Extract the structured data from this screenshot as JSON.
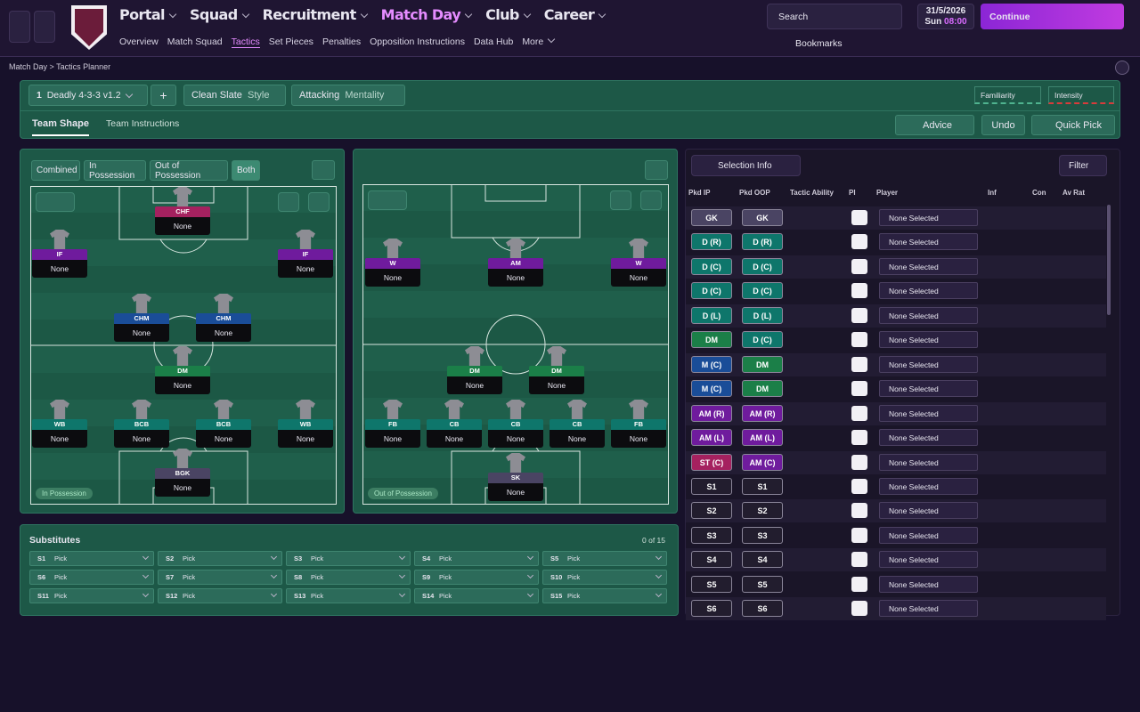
{
  "nav": {
    "main": [
      "Portal",
      "Squad",
      "Recruitment",
      "Match Day",
      "Club",
      "Career"
    ],
    "sub": [
      "Overview",
      "Match Squad",
      "Tactics",
      "Set Pieces",
      "Penalties",
      "Opposition Instructions",
      "Data Hub",
      "More"
    ],
    "search": "Search",
    "date": "31/5/2026",
    "day": "Sun",
    "time": "08:00",
    "continue": "Continue",
    "bookmarks": "Bookmarks"
  },
  "breadcrumb": [
    "Match Day",
    "Tactics Planner"
  ],
  "tactic_bar": {
    "slot": "1",
    "name": "Deadly 4-3-3 v1.2",
    "add": "+",
    "style_value": "Clean Slate",
    "style_label": "Style",
    "mentality_value": "Attacking",
    "mentality_label": "Mentality",
    "familiarity": "Familiarity",
    "intensity": "Intensity"
  },
  "tabs": {
    "items": [
      "Team Shape",
      "Team Instructions"
    ],
    "advice": "Advice",
    "undo": "Undo",
    "quick_pick": "Quick Pick"
  },
  "view_modes": [
    "Combined",
    "In Possession",
    "Out of Possession",
    "Both"
  ],
  "pitches": [
    {
      "label": "In Possession",
      "players": [
        {
          "position": "CHF",
          "player": "None"
        },
        {
          "position": "IF",
          "player": "None"
        },
        {
          "position": "IF",
          "player": "None"
        },
        {
          "position": "CHM",
          "player": "None"
        },
        {
          "position": "CHM",
          "player": "None"
        },
        {
          "position": "DM",
          "player": "None"
        },
        {
          "position": "WB",
          "player": "None"
        },
        {
          "position": "BCB",
          "player": "None"
        },
        {
          "position": "BCB",
          "player": "None"
        },
        {
          "position": "WB",
          "player": "None"
        },
        {
          "position": "BGK",
          "player": "None"
        }
      ]
    },
    {
      "label": "Out of Possession",
      "players": [
        {
          "position": "W",
          "player": "None"
        },
        {
          "position": "AM",
          "player": "None"
        },
        {
          "position": "W",
          "player": "None"
        },
        {
          "position": "DM",
          "player": "None"
        },
        {
          "position": "DM",
          "player": "None"
        },
        {
          "position": "FB",
          "player": "None"
        },
        {
          "position": "CB",
          "player": "None"
        },
        {
          "position": "CB",
          "player": "None"
        },
        {
          "position": "CB",
          "player": "None"
        },
        {
          "position": "FB",
          "player": "None"
        },
        {
          "position": "SK",
          "player": "None"
        }
      ]
    }
  ],
  "substitutes": {
    "title": "Substitutes",
    "count": "0 of 15",
    "slots": [
      {
        "slot": "S1",
        "player": "Pick"
      },
      {
        "slot": "S2",
        "player": "Pick"
      },
      {
        "slot": "S3",
        "player": "Pick"
      },
      {
        "slot": "S4",
        "player": "Pick"
      },
      {
        "slot": "S5",
        "player": "Pick"
      },
      {
        "slot": "S6",
        "player": "Pick"
      },
      {
        "slot": "S7",
        "player": "Pick"
      },
      {
        "slot": "S8",
        "player": "Pick"
      },
      {
        "slot": "S9",
        "player": "Pick"
      },
      {
        "slot": "S10",
        "player": "Pick"
      },
      {
        "slot": "S11",
        "player": "Pick"
      },
      {
        "slot": "S12",
        "player": "Pick"
      },
      {
        "slot": "S13",
        "player": "Pick"
      },
      {
        "slot": "S14",
        "player": "Pick"
      },
      {
        "slot": "S15",
        "player": "Pick"
      }
    ]
  },
  "selection": {
    "info": "Selection Info",
    "filter": "Filter",
    "headers": [
      "Pkd IP",
      "Pkd OOP",
      "Tactic Ability",
      "PI",
      "Player",
      "Inf",
      "Con",
      "Av Rat"
    ],
    "rows": [
      {
        "ip": "GK",
        "oop": "GK",
        "player": "None Selected"
      },
      {
        "ip": "D (R)",
        "oop": "D (R)",
        "player": "None Selected"
      },
      {
        "ip": "D (C)",
        "oop": "D (C)",
        "player": "None Selected"
      },
      {
        "ip": "D (C)",
        "oop": "D (C)",
        "player": "None Selected"
      },
      {
        "ip": "D (L)",
        "oop": "D (L)",
        "player": "None Selected"
      },
      {
        "ip": "DM",
        "oop": "D (C)",
        "player": "None Selected"
      },
      {
        "ip": "M (C)",
        "oop": "DM",
        "player": "None Selected"
      },
      {
        "ip": "M (C)",
        "oop": "DM",
        "player": "None Selected"
      },
      {
        "ip": "AM (R)",
        "oop": "AM (R)",
        "player": "None Selected"
      },
      {
        "ip": "AM (L)",
        "oop": "AM (L)",
        "player": "None Selected"
      },
      {
        "ip": "ST (C)",
        "oop": "AM (C)",
        "player": "None Selected"
      },
      {
        "ip": "S1",
        "oop": "S1",
        "player": "None Selected"
      },
      {
        "ip": "S2",
        "oop": "S2",
        "player": "None Selected"
      },
      {
        "ip": "S3",
        "oop": "S3",
        "player": "None Selected"
      },
      {
        "ip": "S4",
        "oop": "S4",
        "player": "None Selected"
      },
      {
        "ip": "S5",
        "oop": "S5",
        "player": "None Selected"
      },
      {
        "ip": "S6",
        "oop": "S6",
        "player": "None Selected"
      }
    ]
  }
}
